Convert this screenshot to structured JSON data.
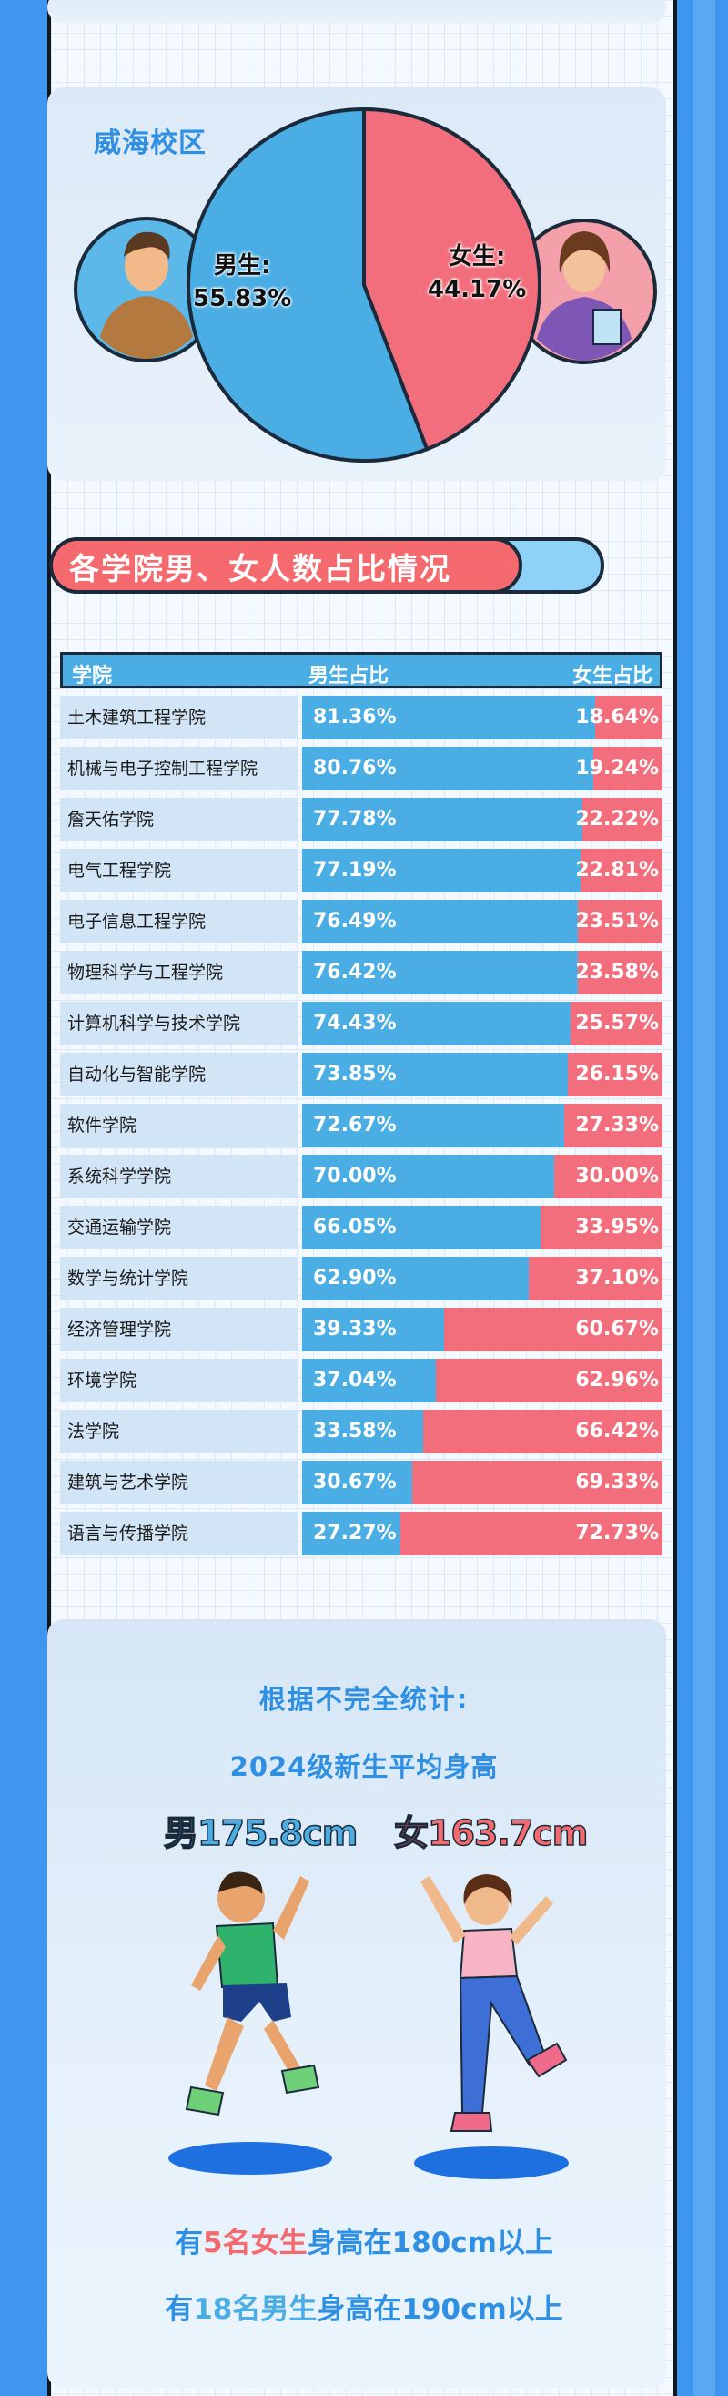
{
  "campus": {
    "title": "威海校区"
  },
  "section": {
    "title": "各学院男、女人数占比情况"
  },
  "table": {
    "headers": [
      "学院",
      "男生占比",
      "女生占比"
    ]
  },
  "height": {
    "line1": "根据不完全统计:",
    "line2": "2024级新生平均身高",
    "male_avg": "男175.8cm",
    "female_avg": "女163.7cm",
    "stat1": {
      "p1": "有",
      "p2": "5名女生",
      "p3": "身高在180cm以上"
    },
    "stat2": {
      "p1": "有",
      "p2": "18名男生",
      "p3": "身高在190cm以上"
    }
  },
  "colors": {
    "male": "#4aaee5",
    "female": "#f26e7c",
    "accent_blue": "#2f8fe2"
  },
  "chart_data": [
    {
      "type": "pie",
      "categories": [
        "男生:",
        "女生:"
      ],
      "values": [
        55.83,
        44.17
      ],
      "value_labels": [
        "55.83%",
        "44.17%"
      ]
    },
    {
      "type": "bar",
      "stacked": true,
      "orientation": "horizontal",
      "categories": [
        "土木建筑工程学院",
        "机械与电子控制工程学院",
        "詹天佑学院",
        "电气工程学院",
        "电子信息工程学院",
        "物理科学与工程学院",
        "计算机科学与技术学院",
        "自动化与智能学院",
        "软件学院",
        "系统科学学院",
        "交通运输学院",
        "数学与统计学院",
        "经济管理学院",
        "环境学院",
        "法学院",
        "建筑与艺术学院",
        "语言与传播学院"
      ],
      "series": [
        {
          "name": "男生占比",
          "values": [
            81.36,
            80.76,
            77.78,
            77.19,
            76.49,
            76.42,
            74.43,
            73.85,
            72.67,
            70.0,
            66.05,
            62.9,
            39.33,
            37.04,
            33.58,
            30.67,
            27.27
          ],
          "labels": [
            "81.36%",
            "80.76%",
            "77.78%",
            "77.19%",
            "76.49%",
            "76.42%",
            "74.43%",
            "73.85%",
            "72.67%",
            "70.00%",
            "66.05%",
            "62.90%",
            "39.33%",
            "37.04%",
            "33.58%",
            "30.67%",
            "27.27%"
          ]
        },
        {
          "name": "女生占比",
          "values": [
            18.64,
            19.24,
            22.22,
            22.81,
            23.51,
            23.58,
            25.57,
            26.15,
            27.33,
            30.0,
            33.95,
            37.1,
            60.67,
            62.96,
            66.42,
            69.33,
            72.73
          ],
          "labels": [
            "18.64%",
            "19.24%",
            "22.22%",
            "22.81%",
            "23.51%",
            "23.58%",
            "25.57%",
            "26.15%",
            "27.33%",
            "30.00%",
            "33.95%",
            "37.10%",
            "60.67%",
            "62.96%",
            "66.42%",
            "69.33%",
            "72.73%"
          ]
        }
      ],
      "xlim": [
        0,
        100
      ]
    }
  ]
}
